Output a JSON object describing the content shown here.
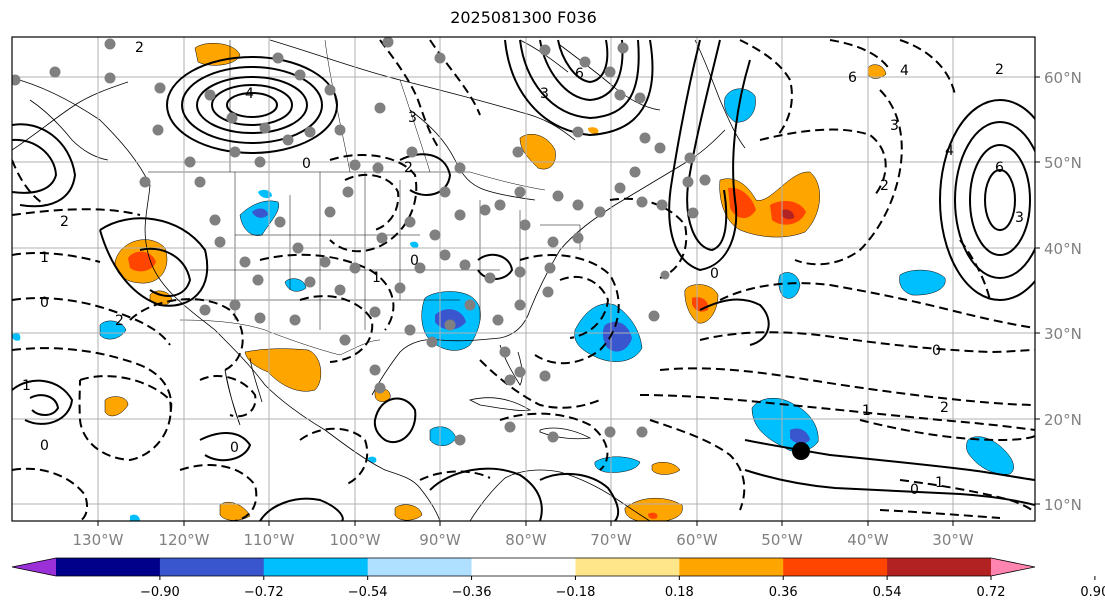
{
  "title": "2025081300 F036",
  "map": {
    "lat_labels": [
      "60°N",
      "50°N",
      "40°N",
      "30°N",
      "20°N",
      "10°N"
    ],
    "lon_labels": [
      "130°W",
      "120°W",
      "110°W",
      "100°W",
      "90°W",
      "80°W",
      "70°W",
      "60°W",
      "50°W",
      "40°W",
      "30°W"
    ],
    "contour_labels": [
      "2",
      "4",
      "6",
      "6",
      "4",
      "2",
      "3",
      "3",
      "2",
      "0",
      "2",
      "1",
      "0",
      "2",
      "0",
      "1",
      "0",
      "0",
      "1",
      "2",
      "6",
      "4",
      "3",
      "1",
      "0",
      "2",
      "3",
      "0",
      "0",
      "1"
    ]
  },
  "colorbar": {
    "colors": [
      "#9b30d9",
      "#00008b",
      "#3a56cf",
      "#00bfff",
      "#b0e0ff",
      "#ffffff",
      "#ffe68a",
      "#ffa500",
      "#ff4500",
      "#b22222",
      "#ff85b0"
    ],
    "tick_labels": [
      "−0.90",
      "−0.72",
      "−0.54",
      "−0.36",
      "−0.18",
      "0.18",
      "0.36",
      "0.54",
      "0.72",
      "0.90"
    ]
  }
}
